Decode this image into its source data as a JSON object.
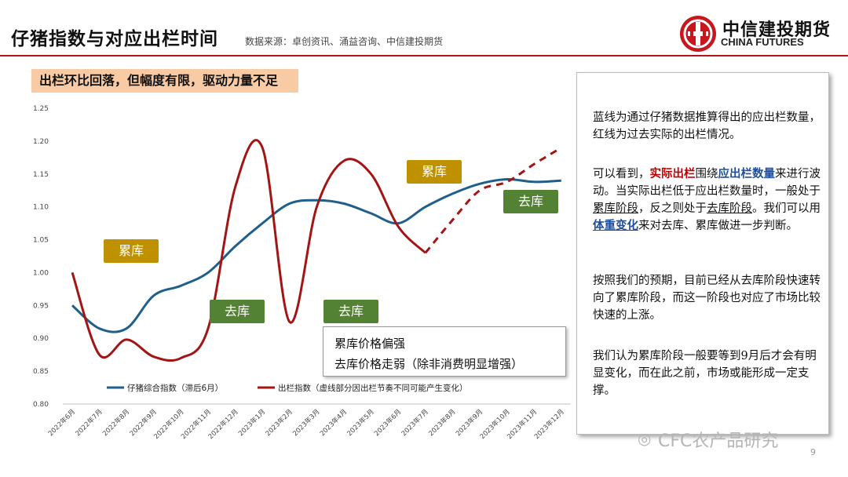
{
  "header": {
    "title": "仔猪指数与对应出栏时间",
    "source": "数据来源：卓创资讯、涌益咨询、中信建投期货",
    "logo_cn": "中信建投期货",
    "logo_en": "CHINA FUTURES"
  },
  "banner": "出栏环比回落，但幅度有限，驱动力量不足",
  "tags": {
    "acc_1": "累库",
    "dec_1": "去库",
    "dec_2": "去库",
    "acc_2": "累库",
    "dec_3": "去库"
  },
  "note": {
    "line1": "累库价格偏强",
    "line2": "去库价格走弱（除非消费明显增强）"
  },
  "panel": {
    "p1": "蓝线为通过仔猪数据推算得出的应出栏数量，红线为过去实际的出栏情况。",
    "p2_a": "可以看到，",
    "p2_b": "实际出栏",
    "p2_c": "围绕",
    "p2_d": "应出栏数量",
    "p2_e": "来进行波动。当实际出栏低于应出栏数量时，一般处于",
    "p2_f": "累库阶段",
    "p2_g": "，反之则处于",
    "p2_h": "去库阶段",
    "p2_i": "。我们可以用",
    "p2_j": "体重变化",
    "p2_k": "来对去库、累库做进一步判断。",
    "p3": "按照我们的预期，目前已经从去库阶段快速转向了累库阶段，而这一阶段也对应了市场比较快速的上涨。",
    "p4": "我们认为累库阶段一般要等到9月后才会有明显变化，而在此之前，市场或能形成一定支撑。"
  },
  "watermark": "CFC农产品研究",
  "page_number": "9",
  "colors": {
    "blue": "#1f5f8b",
    "red": "#a31515",
    "accent": "#b3121e"
  },
  "chart_data": {
    "type": "line",
    "categories": [
      "2022年6月",
      "2022年7月",
      "2022年8月",
      "2022年9月",
      "2022年10月",
      "2022年11月",
      "2022年12月",
      "2023年1月",
      "2023年2月",
      "2023年3月",
      "2023年4月",
      "2023年5月",
      "2023年6月",
      "2023年7月",
      "2023年8月",
      "2023年9月",
      "2023年10月",
      "2023年11月",
      "2023年12月"
    ],
    "y_ticks": [
      "0.80",
      "0.85",
      "0.90",
      "0.95",
      "1.00",
      "1.05",
      "1.10",
      "1.15",
      "1.20",
      "1.25"
    ],
    "ylim": [
      0.8,
      1.25
    ],
    "series": [
      {
        "name": "仔猪综合指数（滞后6月）",
        "color": "#1f5f8b",
        "style": "solid",
        "values": [
          0.95,
          0.915,
          0.915,
          0.965,
          0.98,
          1.0,
          1.04,
          1.075,
          1.105,
          1.11,
          1.105,
          1.09,
          1.075,
          1.1,
          1.12,
          1.135,
          1.142,
          1.138,
          1.14
        ]
      },
      {
        "name": "出栏指数（虚线部分因出栏节奏不同可能产生变化）",
        "color": "#a31515",
        "solid_end_index": 13,
        "values": [
          1.0,
          0.875,
          0.898,
          0.872,
          0.87,
          0.915,
          1.13,
          1.19,
          0.925,
          1.1,
          1.17,
          1.15,
          1.07,
          1.03,
          1.08,
          1.125,
          1.138,
          1.165,
          1.19
        ]
      }
    ],
    "legend_position": "bottom",
    "grid": false
  }
}
